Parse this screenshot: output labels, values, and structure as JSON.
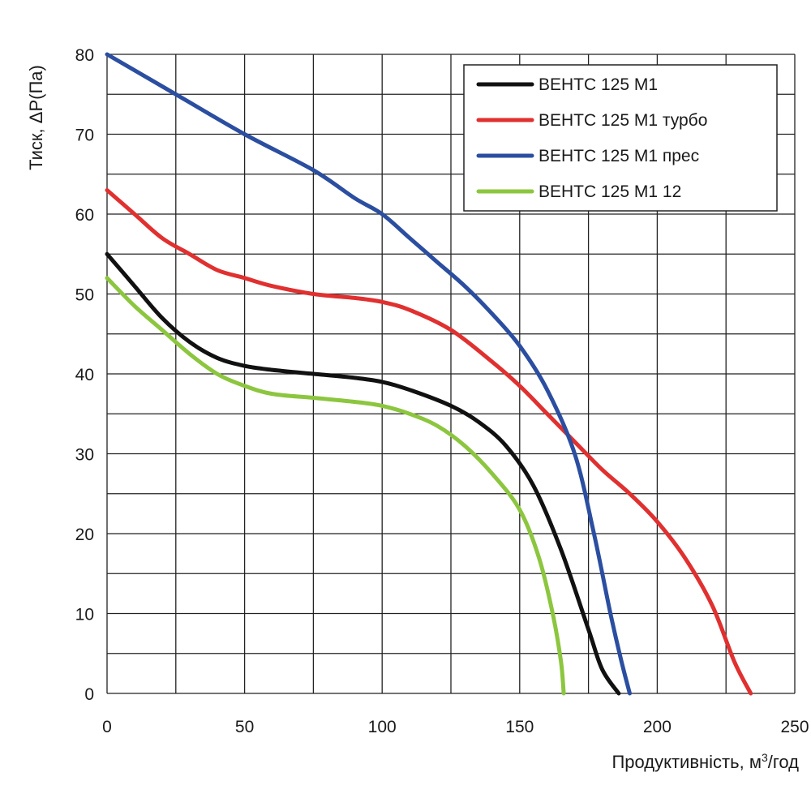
{
  "chart_data": {
    "type": "line",
    "title": "",
    "xlabel": "Продуктивність, м",
    "xlabel_sup": "3",
    "xlabel_suffix": "/год",
    "ylabel": "Тиск, ΔP(Па)",
    "xlim": [
      0,
      250
    ],
    "ylim": [
      0,
      80
    ],
    "x_ticks": [
      0,
      50,
      100,
      150,
      200,
      250
    ],
    "y_ticks": [
      0,
      10,
      20,
      30,
      40,
      50,
      60,
      70,
      80
    ],
    "grid": true,
    "legend_position": "top-right",
    "series": [
      {
        "name": "ВЕНТС 125 М1",
        "color": "#111111",
        "points": [
          [
            0,
            55
          ],
          [
            10,
            51
          ],
          [
            20,
            47
          ],
          [
            30,
            44
          ],
          [
            40,
            42
          ],
          [
            50,
            41
          ],
          [
            60,
            40.5
          ],
          [
            75,
            40
          ],
          [
            90,
            39.5
          ],
          [
            100,
            39
          ],
          [
            110,
            38
          ],
          [
            125,
            36
          ],
          [
            135,
            34
          ],
          [
            145,
            31
          ],
          [
            155,
            26
          ],
          [
            165,
            18
          ],
          [
            175,
            8
          ],
          [
            180,
            3
          ],
          [
            186,
            0
          ]
        ]
      },
      {
        "name": "ВЕНТС 125 М1 турбо",
        "color": "#e03030",
        "points": [
          [
            0,
            63
          ],
          [
            10,
            60
          ],
          [
            20,
            57
          ],
          [
            30,
            55
          ],
          [
            40,
            53
          ],
          [
            50,
            52
          ],
          [
            60,
            51
          ],
          [
            75,
            50
          ],
          [
            90,
            49.5
          ],
          [
            100,
            49
          ],
          [
            110,
            48
          ],
          [
            125,
            45.5
          ],
          [
            140,
            41.5
          ],
          [
            150,
            38.5
          ],
          [
            160,
            35
          ],
          [
            170,
            31.5
          ],
          [
            180,
            28
          ],
          [
            190,
            25
          ],
          [
            200,
            21.5
          ],
          [
            210,
            17
          ],
          [
            220,
            11
          ],
          [
            228,
            4
          ],
          [
            234,
            0
          ]
        ]
      },
      {
        "name": "ВЕНТС 125 М1 прес",
        "color": "#2b4ea0",
        "points": [
          [
            0,
            80
          ],
          [
            25,
            75
          ],
          [
            50,
            70
          ],
          [
            75,
            65.5
          ],
          [
            90,
            62
          ],
          [
            100,
            60
          ],
          [
            110,
            57
          ],
          [
            120,
            54
          ],
          [
            130,
            51
          ],
          [
            140,
            47.5
          ],
          [
            150,
            43.5
          ],
          [
            160,
            38
          ],
          [
            170,
            30
          ],
          [
            177,
            20
          ],
          [
            183,
            10
          ],
          [
            187,
            4
          ],
          [
            190,
            0
          ]
        ]
      },
      {
        "name": "ВЕНТС 125 М1 12",
        "color": "#8cc63f",
        "points": [
          [
            0,
            52
          ],
          [
            10,
            48.5
          ],
          [
            20,
            45.5
          ],
          [
            30,
            42.5
          ],
          [
            40,
            40
          ],
          [
            50,
            38.5
          ],
          [
            60,
            37.5
          ],
          [
            75,
            37
          ],
          [
            90,
            36.5
          ],
          [
            100,
            36
          ],
          [
            110,
            35
          ],
          [
            120,
            33.5
          ],
          [
            130,
            31
          ],
          [
            140,
            27.5
          ],
          [
            150,
            23
          ],
          [
            157,
            17
          ],
          [
            162,
            10
          ],
          [
            165,
            4
          ],
          [
            166,
            0
          ]
        ]
      }
    ]
  }
}
